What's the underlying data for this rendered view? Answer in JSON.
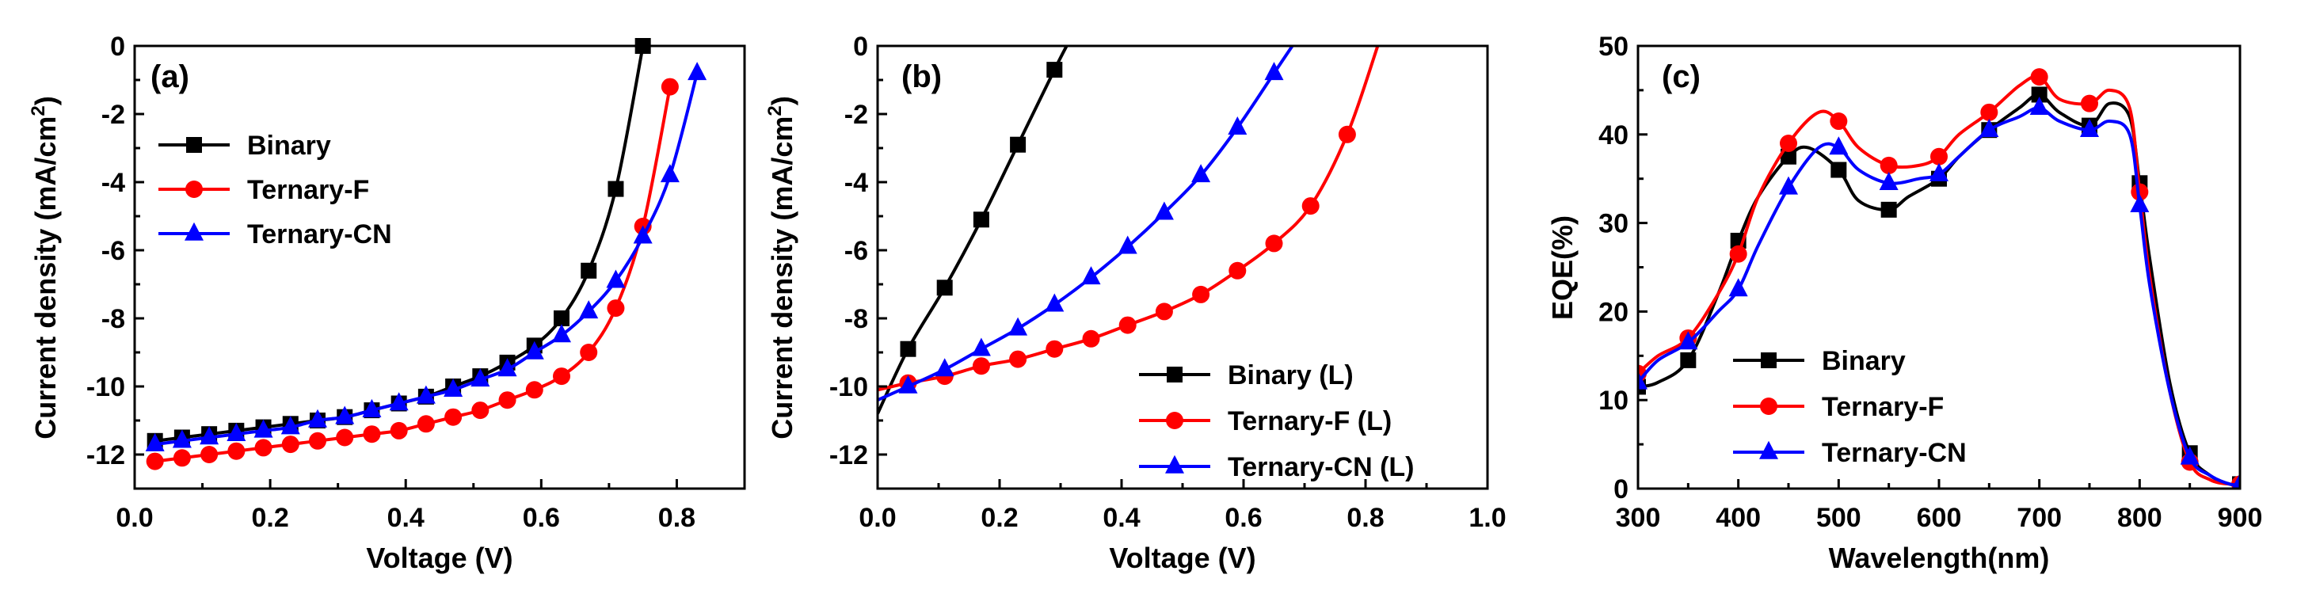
{
  "colors": {
    "binary": "#000000",
    "ternary_f": "#ff0000",
    "ternary_cn": "#0000ff"
  },
  "chart_data": [
    {
      "type": "line",
      "panel": "(a)",
      "xlabel": "Voltage (V)",
      "ylabel": "Current density (mA/cm²)",
      "ylabel_main": "Current density (mA/cm",
      "ylabel_sup": "2",
      "ylabel_end": ")",
      "xlim": [
        0,
        0.9
      ],
      "ylim": [
        -13,
        0
      ],
      "x_ticks": [
        0.0,
        0.2,
        0.4,
        0.6,
        0.8
      ],
      "x_tick_labels": [
        "0.0",
        "0.2",
        "0.4",
        "0.6",
        "0.8"
      ],
      "y_ticks": [
        0,
        -2,
        -4,
        -6,
        -8,
        -10,
        -12
      ],
      "y_tick_labels": [
        "0",
        "-2",
        "-4",
        "-6",
        "-8",
        "-10",
        "-12"
      ],
      "legend_position": "top-left",
      "series": [
        {
          "name": "Binary",
          "color_key": "binary",
          "marker": "square",
          "x": [
            0.03,
            0.07,
            0.11,
            0.15,
            0.19,
            0.23,
            0.27,
            0.31,
            0.35,
            0.39,
            0.43,
            0.47,
            0.51,
            0.55,
            0.59,
            0.63,
            0.67,
            0.71,
            0.75
          ],
          "y": [
            -11.6,
            -11.5,
            -11.4,
            -11.3,
            -11.2,
            -11.1,
            -11.0,
            -10.9,
            -10.7,
            -10.5,
            -10.3,
            -10.0,
            -9.7,
            -9.3,
            -8.8,
            -8.0,
            -6.6,
            -4.2,
            0.0
          ]
        },
        {
          "name": "Ternary-F",
          "color_key": "ternary_f",
          "marker": "circle",
          "x": [
            0.03,
            0.07,
            0.11,
            0.15,
            0.19,
            0.23,
            0.27,
            0.31,
            0.35,
            0.39,
            0.43,
            0.47,
            0.51,
            0.55,
            0.59,
            0.63,
            0.67,
            0.71,
            0.75,
            0.79
          ],
          "y": [
            -12.2,
            -12.1,
            -12.0,
            -11.9,
            -11.8,
            -11.7,
            -11.6,
            -11.5,
            -11.4,
            -11.3,
            -11.1,
            -10.9,
            -10.7,
            -10.4,
            -10.1,
            -9.7,
            -9.0,
            -7.7,
            -5.3,
            -1.2
          ]
        },
        {
          "name": "Ternary-CN",
          "color_key": "ternary_cn",
          "marker": "triangle",
          "x": [
            0.03,
            0.07,
            0.11,
            0.15,
            0.19,
            0.23,
            0.27,
            0.31,
            0.35,
            0.39,
            0.43,
            0.47,
            0.51,
            0.55,
            0.59,
            0.63,
            0.67,
            0.71,
            0.75,
            0.79,
            0.83
          ],
          "y": [
            -11.7,
            -11.6,
            -11.5,
            -11.4,
            -11.3,
            -11.2,
            -11.0,
            -10.9,
            -10.7,
            -10.5,
            -10.3,
            -10.1,
            -9.8,
            -9.5,
            -9.0,
            -8.5,
            -7.8,
            -6.9,
            -5.6,
            -3.8,
            -0.8
          ]
        }
      ]
    },
    {
      "type": "line",
      "panel": "(b)",
      "xlabel": "Voltage (V)",
      "ylabel": "Current density (mA/cm²)",
      "ylabel_main": "Current density (mA/cm",
      "ylabel_sup": "2",
      "ylabel_end": ")",
      "xlim": [
        0,
        1.0
      ],
      "ylim": [
        -13,
        0
      ],
      "x_ticks": [
        0.0,
        0.2,
        0.4,
        0.6,
        0.8,
        1.0
      ],
      "x_tick_labels": [
        "0.0",
        "0.2",
        "0.4",
        "0.6",
        "0.8",
        "1.0"
      ],
      "y_ticks": [
        0,
        -2,
        -4,
        -6,
        -8,
        -10,
        -12
      ],
      "y_tick_labels": [
        "0",
        "-2",
        "-4",
        "-6",
        "-8",
        "-10",
        "-12"
      ],
      "legend_position": "bottom-right",
      "series": [
        {
          "name": "Binary (L)",
          "color_key": "binary",
          "marker": "square",
          "x": [
            0.0,
            0.05,
            0.11,
            0.17,
            0.23,
            0.29,
            0.31
          ],
          "y": [
            -10.8,
            -8.9,
            -7.1,
            -5.1,
            -2.9,
            -0.7,
            0.0
          ],
          "mx": [
            0.05,
            0.11,
            0.17,
            0.23,
            0.29
          ],
          "my": [
            -8.9,
            -7.1,
            -5.1,
            -2.9,
            -0.7
          ]
        },
        {
          "name": "Ternary-F (L)",
          "color_key": "ternary_f",
          "marker": "circle",
          "x": [
            0.0,
            0.05,
            0.11,
            0.17,
            0.23,
            0.29,
            0.35,
            0.41,
            0.47,
            0.53,
            0.59,
            0.65,
            0.71,
            0.77,
            0.82
          ],
          "y": [
            -10.1,
            -9.9,
            -9.7,
            -9.4,
            -9.2,
            -8.9,
            -8.6,
            -8.2,
            -7.8,
            -7.3,
            -6.6,
            -5.8,
            -4.7,
            -2.6,
            0.0
          ],
          "mx": [
            0.05,
            0.11,
            0.17,
            0.23,
            0.29,
            0.35,
            0.41,
            0.47,
            0.53,
            0.59,
            0.65,
            0.71,
            0.77
          ],
          "my": [
            -9.9,
            -9.7,
            -9.4,
            -9.2,
            -8.9,
            -8.6,
            -8.2,
            -7.8,
            -7.3,
            -6.6,
            -5.8,
            -4.7,
            -2.6
          ]
        },
        {
          "name": "Ternary-CN (L)",
          "color_key": "ternary_cn",
          "marker": "triangle",
          "x": [
            0.0,
            0.05,
            0.11,
            0.17,
            0.23,
            0.29,
            0.35,
            0.41,
            0.47,
            0.53,
            0.59,
            0.65,
            0.68
          ],
          "y": [
            -10.4,
            -10.0,
            -9.5,
            -8.9,
            -8.3,
            -7.6,
            -6.8,
            -5.9,
            -4.9,
            -3.8,
            -2.4,
            -0.8,
            0.0
          ],
          "mx": [
            0.05,
            0.11,
            0.17,
            0.23,
            0.29,
            0.35,
            0.41,
            0.47,
            0.53,
            0.59,
            0.65
          ],
          "my": [
            -10.0,
            -9.5,
            -8.9,
            -8.3,
            -7.6,
            -6.8,
            -5.9,
            -4.9,
            -3.8,
            -2.4,
            -0.8
          ]
        }
      ]
    },
    {
      "type": "line",
      "panel": "(c)",
      "xlabel": "Wavelength(nm)",
      "ylabel": "EQE(%)",
      "xlim": [
        300,
        900
      ],
      "ylim": [
        0,
        50
      ],
      "x_ticks": [
        300,
        400,
        500,
        600,
        700,
        800,
        900
      ],
      "x_tick_labels": [
        "300",
        "400",
        "500",
        "600",
        "700",
        "800",
        "900"
      ],
      "y_ticks": [
        0,
        10,
        20,
        30,
        40,
        50
      ],
      "y_tick_labels": [
        "0",
        "10",
        "20",
        "30",
        "40",
        "50"
      ],
      "legend_position": "bottom-left",
      "series": [
        {
          "name": "Binary",
          "color_key": "binary",
          "marker": "square",
          "x": [
            300,
            320,
            350,
            380,
            400,
            420,
            450,
            470,
            500,
            520,
            550,
            570,
            600,
            620,
            650,
            680,
            700,
            720,
            750,
            770,
            790,
            800,
            810,
            830,
            850,
            870,
            890,
            900
          ],
          "y": [
            11.5,
            12,
            14.5,
            22,
            28,
            33,
            37.5,
            38.5,
            36,
            32.5,
            31.5,
            33,
            35,
            37.5,
            40.5,
            43,
            44.5,
            42.5,
            41,
            43.5,
            42,
            34.5,
            26,
            12,
            4,
            1.5,
            0.5,
            0.5
          ],
          "mx": [
            300,
            350,
            400,
            450,
            500,
            550,
            600,
            650,
            700,
            750,
            800,
            850,
            900
          ],
          "my": [
            11.5,
            14.5,
            28,
            37.5,
            36,
            31.5,
            35,
            40.5,
            44.5,
            41,
            34.5,
            4,
            0.5
          ]
        },
        {
          "name": "Ternary-F",
          "color_key": "ternary_f",
          "marker": "circle",
          "x": [
            300,
            320,
            350,
            380,
            400,
            420,
            450,
            480,
            500,
            520,
            550,
            580,
            600,
            620,
            650,
            680,
            700,
            720,
            750,
            770,
            790,
            800,
            810,
            830,
            850,
            870,
            890,
            900
          ],
          "y": [
            13,
            15,
            17,
            22,
            26.5,
            33,
            39,
            42.5,
            41.5,
            38.5,
            36.5,
            36.5,
            37.5,
            40,
            42.5,
            45.5,
            46.5,
            44,
            43.5,
            45,
            43,
            33.5,
            24,
            11,
            3,
            1,
            0.5,
            0.5
          ],
          "mx": [
            300,
            350,
            400,
            450,
            500,
            550,
            600,
            650,
            700,
            750,
            800,
            850,
            900
          ],
          "my": [
            13,
            17,
            26.5,
            39,
            41.5,
            36.5,
            37.5,
            42.5,
            46.5,
            43.5,
            33.5,
            3,
            0.5
          ]
        },
        {
          "name": "Ternary-CN",
          "color_key": "ternary_cn",
          "marker": "triangle",
          "x": [
            300,
            320,
            350,
            380,
            400,
            420,
            450,
            480,
            500,
            520,
            550,
            580,
            600,
            620,
            650,
            680,
            700,
            720,
            750,
            770,
            790,
            800,
            810,
            830,
            850,
            870,
            890,
            900
          ],
          "y": [
            12,
            14.5,
            16.5,
            20,
            22.5,
            27.5,
            34,
            38.5,
            38.5,
            36,
            34.5,
            35,
            35.5,
            37.5,
            40.5,
            42,
            43,
            41.5,
            40.5,
            41.5,
            40,
            32,
            23,
            11,
            3.5,
            1.5,
            0.5,
            0.5
          ],
          "mx": [
            300,
            350,
            400,
            450,
            500,
            550,
            600,
            650,
            700,
            750,
            800,
            850,
            900
          ],
          "my": [
            12,
            16.5,
            22.5,
            34,
            38.5,
            34.5,
            35.5,
            40.5,
            43,
            40.5,
            32,
            3.5,
            0.5
          ]
        }
      ]
    }
  ]
}
